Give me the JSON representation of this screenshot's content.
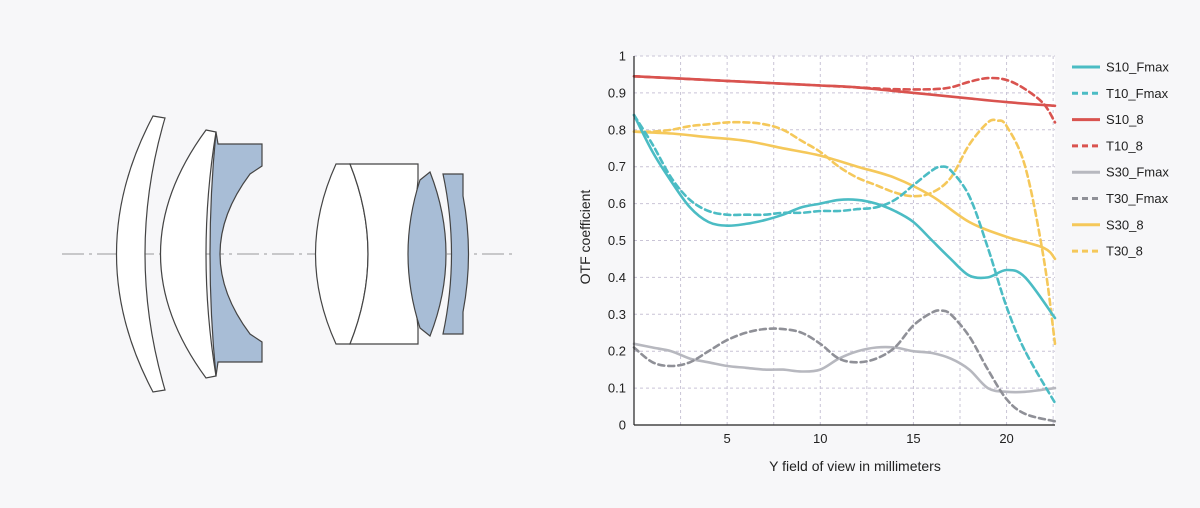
{
  "chart_data": {
    "type": "line",
    "xlabel": "Y field of view in millimeters",
    "ylabel": "OTF coefficient",
    "xlim": [
      0,
      22.6
    ],
    "ylim": [
      0,
      1
    ],
    "x_ticks": [
      5,
      10,
      15,
      20
    ],
    "y_ticks": [
      {
        "value": 0,
        "label": "0"
      },
      {
        "value": 0.1,
        "label": "0.1"
      },
      {
        "value": 0.2,
        "label": "0.2"
      },
      {
        "value": 0.3,
        "label": "0.3"
      },
      {
        "value": 0.4,
        "label": "0.4"
      },
      {
        "value": 0.5,
        "label": "0.5"
      },
      {
        "value": 0.6,
        "label": "0.6"
      },
      {
        "value": 0.7,
        "label": "0.7"
      },
      {
        "value": 0.8,
        "label": "0.8"
      },
      {
        "value": 0.9,
        "label": "0.9"
      },
      {
        "value": 1,
        "label": "1"
      }
    ],
    "grid": true,
    "legend_position": "right",
    "series": [
      {
        "name": "S10_Fmax",
        "color": "#4bbcc4",
        "style": "solid",
        "x": [
          0,
          1,
          2,
          3,
          4,
          5,
          6,
          7,
          8,
          9,
          10,
          11,
          12,
          13,
          14,
          15,
          16,
          17,
          18,
          19,
          20,
          21,
          22.6
        ],
        "y": [
          0.84,
          0.74,
          0.66,
          0.59,
          0.55,
          0.54,
          0.545,
          0.555,
          0.57,
          0.59,
          0.6,
          0.61,
          0.61,
          0.6,
          0.58,
          0.55,
          0.5,
          0.45,
          0.405,
          0.4,
          0.42,
          0.4,
          0.29
        ]
      },
      {
        "name": "T10_Fmax",
        "color": "#4bbcc4",
        "style": "dashed",
        "x": [
          0,
          1,
          2,
          3,
          4,
          5,
          6,
          7,
          8,
          9,
          10,
          11,
          12,
          13,
          14,
          15,
          16,
          16.5,
          17,
          18,
          19,
          20,
          21,
          22.6
        ],
        "y": [
          0.84,
          0.76,
          0.67,
          0.61,
          0.58,
          0.57,
          0.57,
          0.57,
          0.575,
          0.575,
          0.58,
          0.58,
          0.585,
          0.59,
          0.61,
          0.65,
          0.69,
          0.7,
          0.69,
          0.62,
          0.48,
          0.32,
          0.2,
          0.06
        ]
      },
      {
        "name": "S10_8",
        "color": "#d9534f",
        "style": "solid",
        "x": [
          0,
          2,
          4,
          6,
          8,
          10,
          12,
          14,
          16,
          18,
          20,
          22.6
        ],
        "y": [
          0.945,
          0.94,
          0.935,
          0.93,
          0.925,
          0.92,
          0.915,
          0.905,
          0.895,
          0.885,
          0.875,
          0.865
        ]
      },
      {
        "name": "T10_8",
        "color": "#d9534f",
        "style": "dashed",
        "x": [
          0,
          2,
          4,
          6,
          8,
          10,
          12,
          14,
          16,
          17,
          18,
          19,
          20,
          21,
          22,
          22.6
        ],
        "y": [
          0.945,
          0.94,
          0.935,
          0.93,
          0.925,
          0.92,
          0.915,
          0.91,
          0.91,
          0.915,
          0.93,
          0.94,
          0.935,
          0.91,
          0.87,
          0.82
        ]
      },
      {
        "name": "S30_Fmax",
        "color": "#b7b8bf",
        "style": "solid",
        "x": [
          0,
          1,
          2,
          3,
          4,
          5,
          6,
          7,
          8,
          9,
          10,
          11,
          12,
          13,
          14,
          15,
          16,
          17,
          18,
          19,
          20,
          21,
          22.6
        ],
        "y": [
          0.22,
          0.21,
          0.2,
          0.18,
          0.17,
          0.16,
          0.155,
          0.15,
          0.15,
          0.145,
          0.15,
          0.18,
          0.2,
          0.21,
          0.21,
          0.2,
          0.195,
          0.18,
          0.15,
          0.1,
          0.09,
          0.09,
          0.1
        ]
      },
      {
        "name": "T30_Fmax",
        "color": "#8f9097",
        "style": "dashed",
        "x": [
          0,
          1,
          2,
          3,
          4,
          5,
          6,
          7,
          8,
          9,
          10,
          11,
          12,
          13,
          14,
          15,
          16,
          16.5,
          17,
          18,
          19,
          20,
          21,
          22.6
        ],
        "y": [
          0.21,
          0.17,
          0.16,
          0.17,
          0.2,
          0.23,
          0.25,
          0.26,
          0.26,
          0.25,
          0.22,
          0.18,
          0.17,
          0.18,
          0.21,
          0.27,
          0.305,
          0.31,
          0.3,
          0.24,
          0.15,
          0.07,
          0.03,
          0.01
        ]
      },
      {
        "name": "S30_8",
        "color": "#f5c85a",
        "style": "solid",
        "x": [
          0,
          2,
          4,
          6,
          8,
          10,
          12,
          14,
          16,
          18,
          20,
          22,
          22.6
        ],
        "y": [
          0.795,
          0.79,
          0.78,
          0.77,
          0.75,
          0.73,
          0.7,
          0.67,
          0.62,
          0.55,
          0.51,
          0.48,
          0.45
        ]
      },
      {
        "name": "T30_8",
        "color": "#f5c85a",
        "style": "dashed",
        "x": [
          0,
          1,
          2,
          3,
          4,
          5,
          6,
          7,
          8,
          9,
          10,
          11,
          12,
          13,
          14,
          15,
          16,
          17,
          18,
          19,
          19.5,
          20,
          21,
          22,
          22.6
        ],
        "y": [
          0.795,
          0.795,
          0.8,
          0.81,
          0.815,
          0.82,
          0.82,
          0.815,
          0.8,
          0.77,
          0.74,
          0.7,
          0.67,
          0.65,
          0.63,
          0.62,
          0.63,
          0.67,
          0.76,
          0.82,
          0.825,
          0.81,
          0.7,
          0.45,
          0.22
        ]
      }
    ]
  },
  "lens_diagram": {
    "glass_color": "#ffffff",
    "stroke_color": "#444444",
    "tinted_color": "#a8bdd6",
    "axis_color": "#9a9a9a"
  }
}
